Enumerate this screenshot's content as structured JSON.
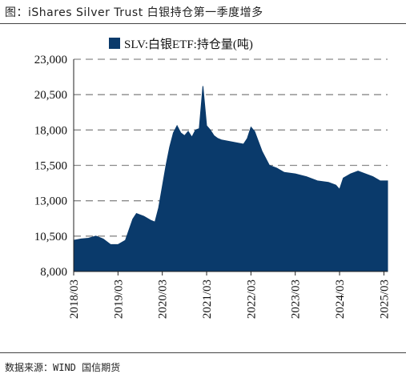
{
  "figure_title": "图：iShares Silver Trust 白银持仓第一季度增多",
  "source": "数据来源：WIND 国信期货",
  "chart_data": {
    "type": "area",
    "title": "",
    "xlabel": "",
    "ylabel": "",
    "legend": {
      "label": "SLV:白银ETF:持仓量(吨)",
      "position": "top-center"
    },
    "ylim": [
      8000,
      23000
    ],
    "yticks": [
      "8,000",
      "10,500",
      "13,000",
      "15,500",
      "18,000",
      "20,500",
      "23,000"
    ],
    "ytick_values": [
      8000,
      10500,
      13000,
      15500,
      18000,
      20500,
      23000
    ],
    "xlim": [
      "2018/03",
      "2025/04"
    ],
    "xticks": [
      "2018/03",
      "2019/03",
      "2020/03",
      "2021/03",
      "2022/03",
      "2023/03",
      "2024/03",
      "2025/03"
    ],
    "grid": {
      "horizontal": true,
      "style": "dashed"
    },
    "colors": {
      "fill": "#0a3a6b",
      "grid": "#8a8a8a"
    },
    "series": [
      {
        "name": "SLV:白银ETF:持仓量(吨)",
        "x": [
          "2018/03",
          "2018/05",
          "2018/07",
          "2018/09",
          "2018/11",
          "2019/01",
          "2019/03",
          "2019/05",
          "2019/07",
          "2019/08",
          "2019/10",
          "2019/12",
          "2020/01",
          "2020/02",
          "2020/03",
          "2020/04",
          "2020/05",
          "2020/06",
          "2020/07",
          "2020/08",
          "2020/09",
          "2020/10",
          "2020/11",
          "2020/12",
          "2021/01",
          "2021/02",
          "2021/03",
          "2021/04",
          "2021/05",
          "2021/06",
          "2021/07",
          "2021/09",
          "2021/11",
          "2022/01",
          "2022/02",
          "2022/03",
          "2022/04",
          "2022/05",
          "2022/06",
          "2022/08",
          "2022/10",
          "2022/12",
          "2023/03",
          "2023/06",
          "2023/09",
          "2023/12",
          "2024/02",
          "2024/03",
          "2024/04",
          "2024/06",
          "2024/08",
          "2024/10",
          "2024/12",
          "2025/02",
          "2025/04"
        ],
        "values": [
          10200,
          10300,
          10350,
          10500,
          10300,
          9900,
          9900,
          10200,
          11700,
          12100,
          11900,
          11600,
          11500,
          12500,
          14000,
          15500,
          16800,
          17800,
          18300,
          17800,
          17600,
          17900,
          17500,
          18000,
          18100,
          21100,
          18300,
          18000,
          17600,
          17400,
          17300,
          17200,
          17100,
          17000,
          17400,
          18200,
          17900,
          17200,
          16500,
          15500,
          15300,
          15000,
          14900,
          14700,
          14400,
          14300,
          14100,
          13800,
          14600,
          14900,
          15100,
          14900,
          14700,
          14400,
          14400
        ]
      }
    ]
  }
}
